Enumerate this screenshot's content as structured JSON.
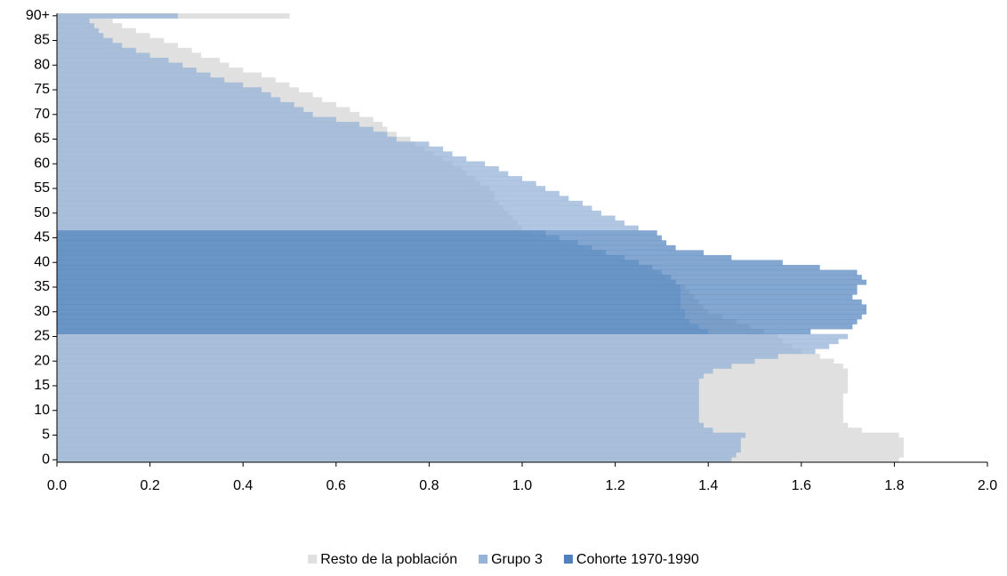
{
  "chart_data": {
    "type": "hbar-overlap",
    "categories": [
      "0",
      null,
      null,
      null,
      null,
      "5",
      null,
      null,
      null,
      null,
      "10",
      null,
      null,
      null,
      null,
      "15",
      null,
      null,
      null,
      null,
      "20",
      null,
      null,
      null,
      null,
      "25",
      null,
      null,
      null,
      null,
      "30",
      null,
      null,
      null,
      null,
      "35",
      null,
      null,
      null,
      null,
      "40",
      null,
      null,
      null,
      null,
      "45",
      null,
      null,
      null,
      null,
      "50",
      null,
      null,
      null,
      null,
      "55",
      null,
      null,
      null,
      null,
      "60",
      null,
      null,
      null,
      null,
      "65",
      null,
      null,
      null,
      null,
      "70",
      null,
      null,
      null,
      null,
      "75",
      null,
      null,
      null,
      null,
      "80",
      null,
      null,
      null,
      null,
      "85",
      null,
      null,
      null,
      null,
      "90+"
    ],
    "series": [
      {
        "name": "Resto de la población",
        "color": "#e0e0e0",
        "values": [
          1.81,
          1.82,
          1.82,
          1.82,
          1.82,
          1.81,
          1.73,
          1.7,
          1.69,
          1.69,
          1.69,
          1.69,
          1.69,
          1.69,
          1.7,
          1.7,
          1.7,
          1.7,
          1.7,
          1.69,
          1.67,
          1.64,
          1.6,
          1.58,
          1.56,
          1.55,
          1.52,
          1.49,
          1.46,
          1.43,
          1.4,
          1.39,
          1.38,
          1.37,
          1.36,
          1.35,
          1.33,
          1.31,
          1.29,
          1.27,
          1.25,
          1.21,
          1.17,
          1.13,
          1.09,
          1.05,
          1.02,
          1.0,
          0.99,
          0.98,
          0.97,
          0.96,
          0.95,
          0.94,
          0.94,
          0.93,
          0.91,
          0.9,
          0.88,
          0.87,
          0.85,
          0.83,
          0.81,
          0.79,
          0.77,
          0.76,
          0.73,
          0.71,
          0.7,
          0.68,
          0.65,
          0.63,
          0.6,
          0.57,
          0.55,
          0.52,
          0.5,
          0.47,
          0.44,
          0.4,
          0.37,
          0.35,
          0.31,
          0.29,
          0.26,
          0.23,
          0.2,
          0.17,
          0.14,
          0.12,
          0.5
        ]
      },
      {
        "name": "Grupo 3",
        "color": "#95b3d7",
        "values": [
          1.45,
          1.46,
          1.47,
          1.47,
          1.47,
          1.48,
          1.41,
          1.39,
          1.38,
          1.38,
          1.38,
          1.38,
          1.38,
          1.38,
          1.38,
          1.38,
          1.38,
          1.39,
          1.41,
          1.45,
          1.5,
          1.55,
          1.63,
          1.66,
          1.68,
          1.7,
          1.4,
          1.38,
          1.36,
          1.35,
          1.35,
          1.34,
          1.34,
          1.34,
          1.34,
          1.34,
          1.33,
          1.32,
          1.3,
          1.28,
          1.25,
          1.22,
          1.18,
          1.15,
          1.12,
          1.08,
          1.05,
          1.25,
          1.22,
          1.2,
          1.17,
          1.15,
          1.13,
          1.1,
          1.08,
          1.05,
          1.03,
          1.0,
          0.97,
          0.95,
          0.92,
          0.88,
          0.85,
          0.83,
          0.8,
          0.73,
          0.71,
          0.68,
          0.65,
          0.6,
          0.55,
          0.53,
          0.51,
          0.48,
          0.46,
          0.44,
          0.4,
          0.36,
          0.33,
          0.3,
          0.27,
          0.24,
          0.2,
          0.17,
          0.14,
          0.12,
          0.1,
          0.09,
          0.08,
          0.07,
          0.26
        ]
      },
      {
        "name": "Cohorte 1970-1990",
        "color": "#4f81bd",
        "values": [
          null,
          null,
          null,
          null,
          null,
          null,
          null,
          null,
          null,
          null,
          null,
          null,
          null,
          null,
          null,
          null,
          null,
          null,
          null,
          null,
          null,
          null,
          null,
          null,
          null,
          null,
          1.62,
          1.71,
          1.72,
          1.73,
          1.74,
          1.74,
          1.73,
          1.71,
          1.72,
          1.72,
          1.74,
          1.73,
          1.72,
          1.64,
          1.56,
          1.45,
          1.39,
          1.33,
          1.31,
          1.3,
          1.29,
          null,
          null,
          null,
          null,
          null,
          null,
          null,
          null,
          null,
          null,
          null,
          null,
          null,
          null,
          null,
          null,
          null,
          null,
          null,
          null,
          null,
          null,
          null,
          null,
          null,
          null,
          null,
          null,
          null,
          null,
          null,
          null,
          null,
          null,
          null,
          null,
          null,
          null,
          null,
          null,
          null,
          null,
          null,
          null
        ]
      }
    ],
    "xlim": [
      0,
      2
    ],
    "xticks": [
      {
        "value": 0,
        "label": "0.0"
      },
      0.2,
      0.4,
      0.6,
      0.8,
      {
        "value": 1,
        "label": "1.0"
      },
      1.2,
      1.4,
      1.6,
      1.8,
      {
        "value": 2,
        "label": "2.0"
      }
    ]
  }
}
